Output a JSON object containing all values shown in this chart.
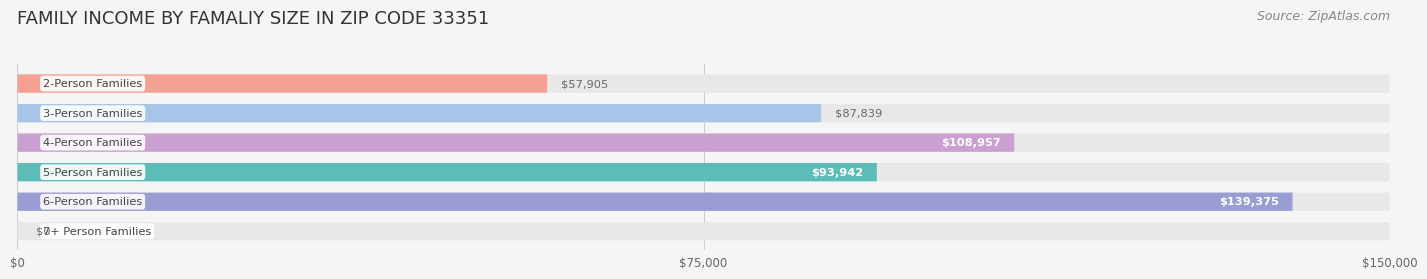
{
  "title": "FAMILY INCOME BY FAMALIY SIZE IN ZIP CODE 33351",
  "source": "Source: ZipAtlas.com",
  "categories": [
    "2-Person Families",
    "3-Person Families",
    "4-Person Families",
    "5-Person Families",
    "6-Person Families",
    "7+ Person Families"
  ],
  "values": [
    57905,
    87839,
    108957,
    93942,
    139375,
    0
  ],
  "bar_colors": [
    "#f4a093",
    "#a8c4e8",
    "#c9a0d0",
    "#5bbcb8",
    "#9b9cd4",
    "#f7b8cb"
  ],
  "label_colors": [
    "#888888",
    "#888888",
    "#ffffff",
    "#ffffff",
    "#ffffff",
    "#888888"
  ],
  "xlim": [
    0,
    150000
  ],
  "xticks": [
    0,
    75000,
    150000
  ],
  "xtick_labels": [
    "$0",
    "$75,000",
    "$150,000"
  ],
  "background_color": "#f5f5f5",
  "bar_bg_color": "#e8e8e8",
  "title_fontsize": 13,
  "source_fontsize": 9,
  "bar_height": 0.62,
  "value_labels": [
    "$57,905",
    "$87,839",
    "$108,957",
    "$93,942",
    "$139,375",
    "$0"
  ]
}
